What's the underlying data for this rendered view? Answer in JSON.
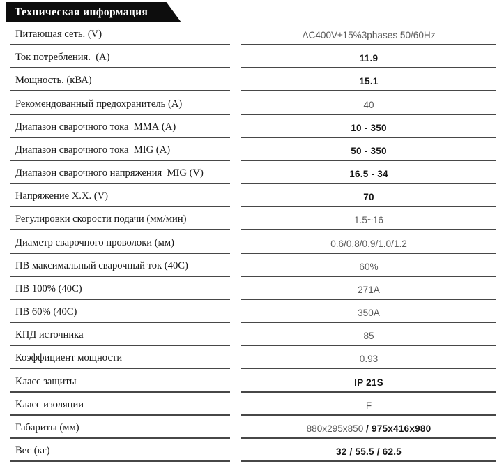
{
  "header": {
    "title": "Техническая информация"
  },
  "colors": {
    "badge_bg": "#0d0d0d",
    "badge_text": "#ffffff",
    "divider_line": "#474747",
    "value_gray": "#5a5a5a",
    "value_dark": "#141414"
  },
  "table": {
    "rows": [
      {
        "label": "Питающая сеть. (V)",
        "value_parts": [
          {
            "text": "AC400V±15%3phases 50/60Hz",
            "tone": "gray"
          }
        ]
      },
      {
        "label": "Ток потребления.  (А)",
        "value_parts": [
          {
            "text": "11.9",
            "tone": "dark"
          }
        ]
      },
      {
        "label": "Мощность. (кВА)",
        "value_parts": [
          {
            "text": "15.1",
            "tone": "dark"
          }
        ]
      },
      {
        "label": "Рекомендованный предохранитель (А)",
        "value_parts": [
          {
            "text": "40",
            "tone": "gray"
          }
        ]
      },
      {
        "label": "Диапазон сварочного тока  ММА (А)",
        "value_parts": [
          {
            "text": "10 - 350",
            "tone": "dark"
          }
        ]
      },
      {
        "label": "Диапазон сварочного тока  MIG (А)",
        "value_parts": [
          {
            "text": "50 - 350",
            "tone": "dark"
          }
        ]
      },
      {
        "label": "Диапазон сварочного напряжения  MIG (V)",
        "value_parts": [
          {
            "text": "16.5 - 34",
            "tone": "dark"
          }
        ]
      },
      {
        "label": "Напряжение Х.Х. (V)",
        "value_parts": [
          {
            "text": "70",
            "tone": "dark"
          }
        ]
      },
      {
        "label": "Регулировки скорости подачи (мм/мин)",
        "value_parts": [
          {
            "text": "1.5~16",
            "tone": "gray"
          }
        ]
      },
      {
        "label": "Диаметр сварочного проволоки (мм)",
        "value_parts": [
          {
            "text": "0.6/0.8/0.9/1.0/1.2",
            "tone": "gray"
          }
        ]
      },
      {
        "label": "ПВ максимальный сварочный ток (40C)",
        "value_parts": [
          {
            "text": "60%",
            "tone": "gray"
          }
        ]
      },
      {
        "label": "ПВ 100% (40C)",
        "value_parts": [
          {
            "text": "271A",
            "tone": "gray"
          }
        ]
      },
      {
        "label": "ПВ 60% (40C)",
        "value_parts": [
          {
            "text": "350A",
            "tone": "gray"
          }
        ]
      },
      {
        "label": "КПД источника",
        "value_parts": [
          {
            "text": "85",
            "tone": "gray"
          }
        ]
      },
      {
        "label": "Коэффициент мощности",
        "value_parts": [
          {
            "text": "0.93",
            "tone": "gray"
          }
        ]
      },
      {
        "label": "Класс защиты",
        "value_parts": [
          {
            "text": "IP 21S",
            "tone": "dark"
          }
        ]
      },
      {
        "label": "Класс изоляции",
        "value_parts": [
          {
            "text": "F",
            "tone": "gray"
          }
        ]
      },
      {
        "label": "Габариты (мм)",
        "value_parts": [
          {
            "text": "880x295x850 ",
            "tone": "gray"
          },
          {
            "text": "/ 975x416x980",
            "tone": "dark"
          }
        ]
      },
      {
        "label": "Вес (кг)",
        "value_parts": [
          {
            "text": "32 / 55.5 / 62.5",
            "tone": "dark"
          }
        ]
      }
    ]
  }
}
